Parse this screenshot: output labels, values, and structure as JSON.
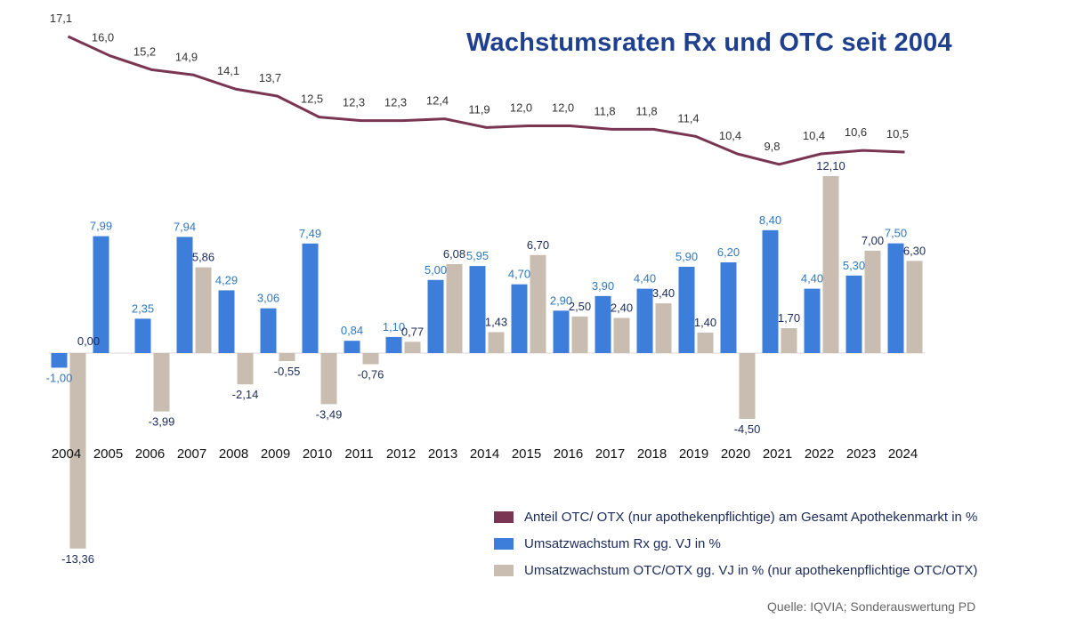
{
  "title": "Wachstumsraten Rx und OTC seit 2004",
  "source": "Quelle: IQVIA; Sonderauswertung PD",
  "colors": {
    "line": "#7a3552",
    "rx": "#3d7edb",
    "otc": "#c9bdb1",
    "rx_label": "#2f78bd",
    "otc_label": "#1b2a5a"
  },
  "chart_data": {
    "type": "bar",
    "categories": [
      "2004",
      "2005",
      "2006",
      "2007",
      "2008",
      "2009",
      "2010",
      "2011",
      "2012",
      "2013",
      "2014",
      "2015",
      "2016",
      "2017",
      "2018",
      "2019",
      "2020",
      "2021",
      "2022",
      "2023",
      "2024"
    ],
    "series": [
      {
        "name": "Anteil OTC/ OTX (nur apothekenpflichtige) am Gesamt Apothekenmarkt in %",
        "kind": "line",
        "values": [
          17.1,
          16.0,
          15.2,
          14.9,
          14.1,
          13.7,
          12.5,
          12.3,
          12.3,
          12.4,
          11.9,
          12.0,
          12.0,
          11.8,
          11.8,
          11.4,
          10.4,
          9.8,
          10.4,
          10.6,
          10.5
        ],
        "labels": [
          "17,1",
          "16,0",
          "15,2",
          "14,9",
          "14,1",
          "13,7",
          "12,5",
          "12,3",
          "12,3",
          "12,4",
          "11,9",
          "12,0",
          "12,0",
          "11,8",
          "11,8",
          "11,4",
          "10,4",
          "9,8",
          "10,4",
          "10,6",
          "10,5"
        ]
      },
      {
        "name": "Umsatzwachstum Rx gg. VJ in %",
        "kind": "bar",
        "values": [
          -1.0,
          7.99,
          2.35,
          7.94,
          4.29,
          3.06,
          7.49,
          0.84,
          1.1,
          5.0,
          5.95,
          4.7,
          2.9,
          3.9,
          4.4,
          5.9,
          6.2,
          8.4,
          4.4,
          5.3,
          7.5
        ],
        "labels": [
          "-1,00",
          "7,99",
          "2,35",
          "7,94",
          "4,29",
          "3,06",
          "7,49",
          "0,84",
          "1,10",
          "5,00",
          "5,95",
          "4,70",
          "2,90",
          "3,90",
          "4,40",
          "5,90",
          "6,20",
          "8,40",
          "4,40",
          "5,30",
          "7,50"
        ]
      },
      {
        "name": "Umsatzwachstum OTC/OTX gg. VJ in % (nur apothekenpflichtige OTC/OTX)",
        "kind": "bar",
        "values": [
          -13.36,
          0.0,
          -3.99,
          5.86,
          -2.14,
          -0.55,
          -3.49,
          -0.76,
          0.77,
          6.08,
          1.43,
          6.7,
          2.5,
          2.4,
          3.4,
          1.4,
          -4.5,
          1.7,
          12.1,
          7.0,
          6.3
        ],
        "labels": [
          "-13,36",
          "0,00",
          "-3,99",
          "5,86",
          "-2,14",
          "-0,55",
          "-3,49",
          "-0,76",
          "0,77",
          "6,08",
          "1,43",
          "6,70",
          "2,50",
          "2,40",
          "3,40",
          "1,40",
          "-4,50",
          "1,70",
          "12,10",
          "7,00",
          "6,30"
        ]
      }
    ],
    "legend_position": "bottom-right",
    "grid": false
  }
}
